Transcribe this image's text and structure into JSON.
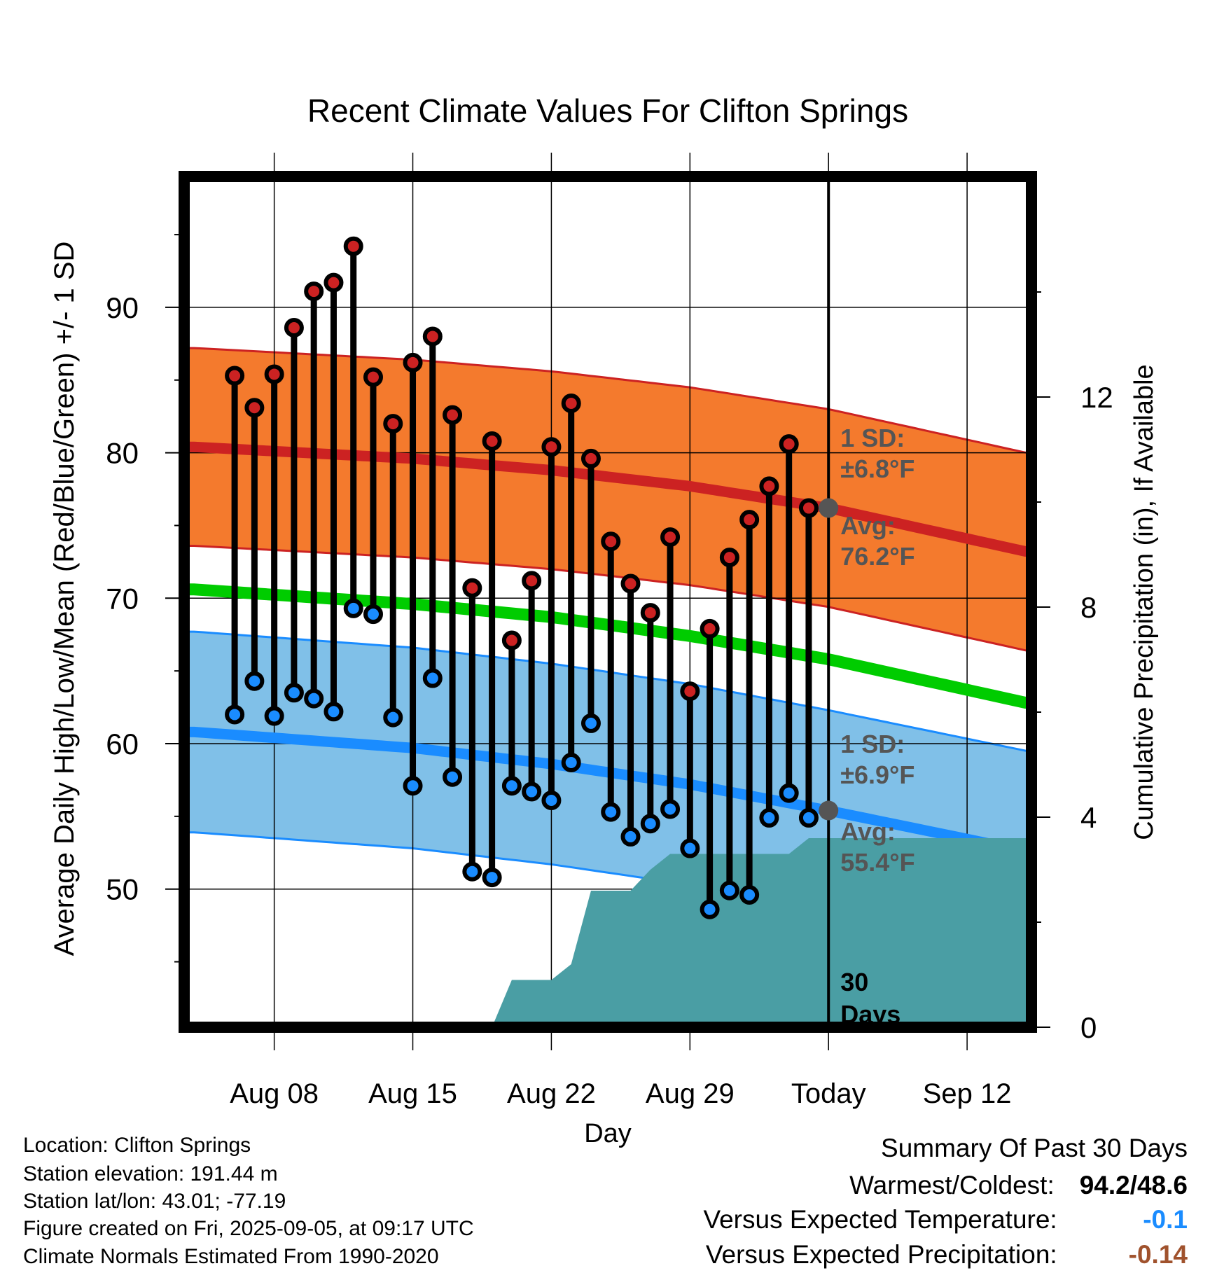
{
  "chart_data": {
    "type": "line",
    "title": "Recent Climate Values For Clifton Springs",
    "xlabel": "Day",
    "ylabel": "Average Daily High/Low/Mean (Red/Blue/Green) +/- 1 SD",
    "y2label": "Cumulative Precipitation (in), If Available",
    "x_start": "Aug 04",
    "x_end": "Sep 15",
    "today": "Sep 05",
    "ylim": [
      40.5,
      99
    ],
    "y2lim": [
      0,
      16.2
    ],
    "x_ticks": [
      "Aug 08",
      "Aug 15",
      "Aug 22",
      "Aug 29",
      "Today",
      "Sep 12"
    ],
    "y_ticks": [
      50,
      60,
      70,
      80,
      90
    ],
    "y2_ticks": [
      0,
      4,
      8,
      12
    ],
    "grid": true,
    "observations": {
      "dates": [
        "Aug 06",
        "Aug 07",
        "Aug 08",
        "Aug 09",
        "Aug 10",
        "Aug 11",
        "Aug 12",
        "Aug 13",
        "Aug 14",
        "Aug 15",
        "Aug 16",
        "Aug 17",
        "Aug 18",
        "Aug 19",
        "Aug 20",
        "Aug 21",
        "Aug 22",
        "Aug 23",
        "Aug 24",
        "Aug 25",
        "Aug 26",
        "Aug 27",
        "Aug 28",
        "Aug 29",
        "Aug 30",
        "Aug 31",
        "Sep 01",
        "Sep 02",
        "Sep 03",
        "Sep 04"
      ],
      "high": [
        85.3,
        83.1,
        85.4,
        88.6,
        91.1,
        91.7,
        94.2,
        85.2,
        82.0,
        86.2,
        88.0,
        82.6,
        70.7,
        80.8,
        67.1,
        71.2,
        80.4,
        83.4,
        79.6,
        73.9,
        71.0,
        69.0,
        74.2,
        63.6,
        67.9,
        72.8,
        75.4,
        77.7,
        80.6,
        76.2
      ],
      "low": [
        62.0,
        64.3,
        61.9,
        63.5,
        63.1,
        62.2,
        69.3,
        68.9,
        61.8,
        57.1,
        64.5,
        57.7,
        51.2,
        50.8,
        57.1,
        56.7,
        56.1,
        58.7,
        61.4,
        55.3,
        53.6,
        54.5,
        55.5,
        52.8,
        48.6,
        49.9,
        49.6,
        54.9,
        56.6,
        54.9
      ]
    },
    "normals": {
      "dates": [
        "Aug 04",
        "Aug 15",
        "Aug 22",
        "Aug 29",
        "Sep 05",
        "Sep 15"
      ],
      "avg_high": [
        80.4,
        79.6,
        78.8,
        77.7,
        76.2,
        73.2
      ],
      "avg_low": [
        60.8,
        59.7,
        58.6,
        57.2,
        55.4,
        52.6
      ],
      "avg_mean": [
        70.6,
        69.6,
        68.7,
        67.4,
        65.8,
        62.8
      ],
      "high_sd": 6.8,
      "low_sd": 6.9
    },
    "precipitation": {
      "dates": [
        "Aug 19",
        "Aug 20",
        "Aug 22",
        "Aug 23",
        "Aug 24",
        "Aug 26",
        "Aug 27",
        "Aug 28",
        "Aug 29",
        "Sep 03",
        "Sep 04",
        "Sep 05",
        "Sep 15"
      ],
      "cumulative": [
        0,
        0.9,
        0.9,
        1.2,
        2.6,
        2.6,
        3.0,
        3.3,
        3.3,
        3.3,
        3.6,
        3.6,
        3.6
      ]
    },
    "colors": {
      "high": "#cc2222",
      "high_band": "#f47a2d",
      "low": "#1a8cff",
      "low_band": "#80c0e8",
      "mean": "#00cc00",
      "precip": "#4a9ea4",
      "label": "#555555"
    }
  },
  "annotations": {
    "high_sd_label": "1 SD:",
    "high_sd_value": "±6.8°F",
    "high_avg_label": "Avg:",
    "high_avg_value": "76.2°F",
    "low_sd_label": "1 SD:",
    "low_sd_value": "±6.9°F",
    "low_avg_label": "Avg:",
    "low_avg_value": "55.4°F",
    "precip_days_value": "30",
    "precip_days_label": "Days"
  },
  "info": {
    "location": "Location: Clifton Springs",
    "elevation": "Station elevation: 191.44 m",
    "latlon": "Station lat/lon: 43.01; -77.19",
    "created": "Figure created on Fri, 2025-09-05, at 09:17 UTC",
    "normals": "Climate Normals Estimated From 1990-2020"
  },
  "summary": {
    "title": "Summary Of Past 30 Days",
    "warm_cold_label": "Warmest/Coldest:",
    "warm_cold_value": "94.2/48.6",
    "temp_label": "Versus Expected Temperature:",
    "temp_value": "-0.1",
    "temp_color": "#1a8cff",
    "precip_label": "Versus Expected Precipitation:",
    "precip_value": "-0.14",
    "precip_color": "#a0522d"
  }
}
